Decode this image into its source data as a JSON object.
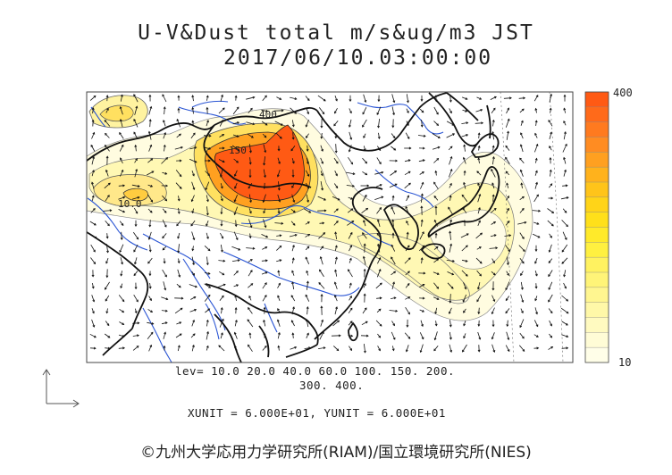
{
  "header": {
    "title": "U-V&Dust total m/s&ug/m3 JST",
    "datetime": "2017/06/10.03:00:00"
  },
  "legend": {
    "levels_line1": "lev= 10.0 20.0 40.0 60.0 100. 150. 200.",
    "levels_line2": "300. 400.",
    "units": "XUNIT = 6.000E+01, YUNIT = 6.000E+01"
  },
  "colorbar": {
    "max_label": "400",
    "min_label": "10",
    "colors": [
      "#ff5a14",
      "#ff6a1a",
      "#ff7a1f",
      "#ff8c22",
      "#ffa020",
      "#ffb21c",
      "#ffc41a",
      "#ffd418",
      "#ffe01a",
      "#ffea2a",
      "#fff040",
      "#fff260",
      "#fff478",
      "#fff690",
      "#fff8a8",
      "#fffac0",
      "#fffcd6",
      "#fffee8"
    ]
  },
  "contour_labels": {
    "label_400": "400",
    "label_150": "150",
    "label_10": "10.0"
  },
  "copyright": "©九州大学応用力学研究所(RIAM)/国立環境研究所(NIES)",
  "map_colors": {
    "land_outline": "#111111",
    "rivers": "#2a55d4",
    "dust_peak": "#ff5a14",
    "dust_high": "#ffa020",
    "dust_mid": "#ffe060",
    "dust_low": "#fff8b4",
    "dust_faint": "#fffce0"
  }
}
